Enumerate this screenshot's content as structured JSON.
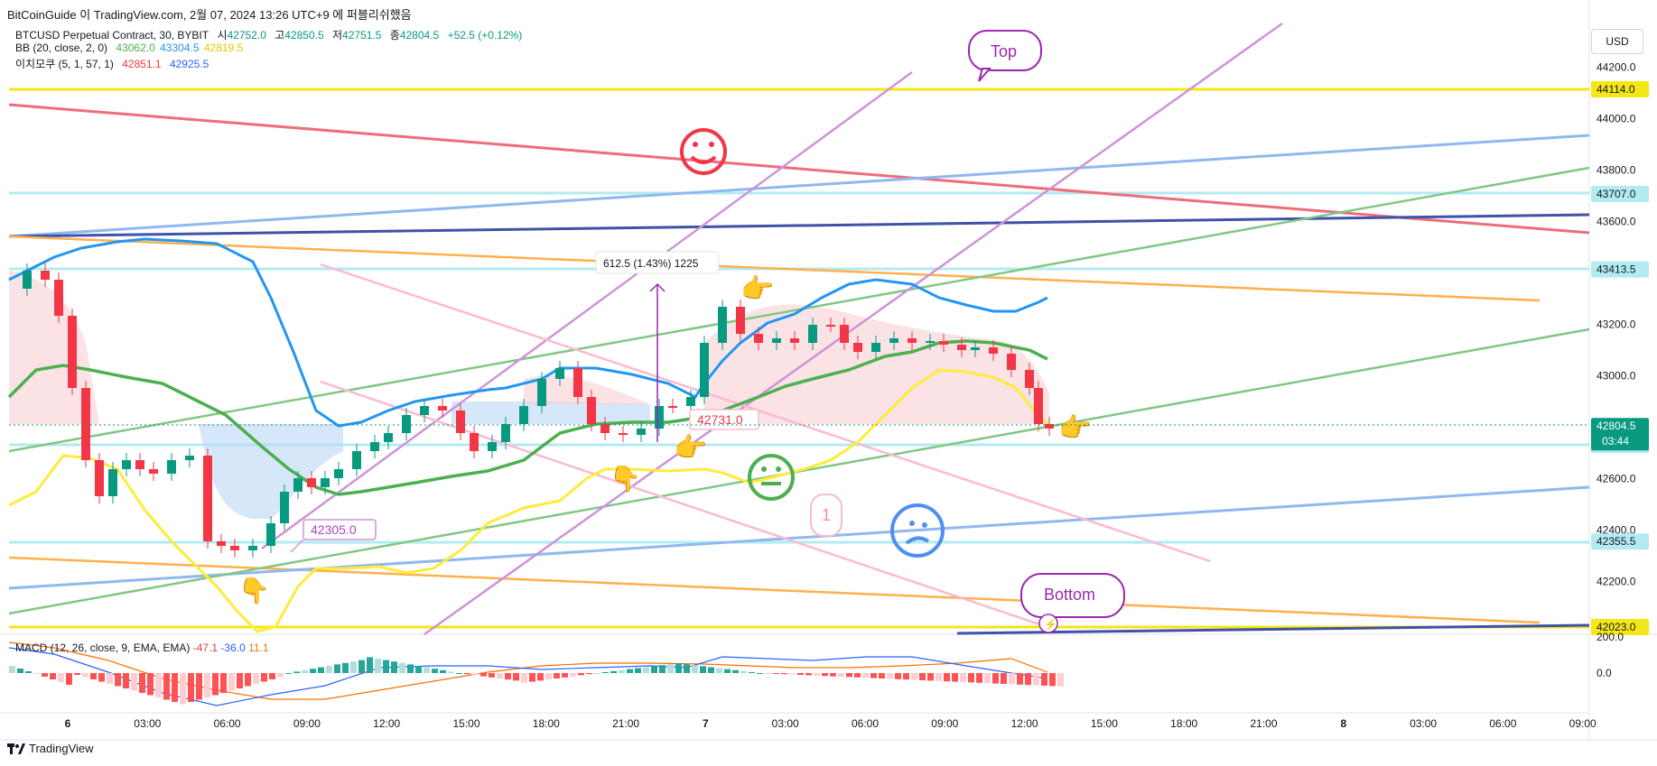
{
  "header": {
    "publish_line": "BitCoinGuide 이 TradingView.com, 2월 07, 2024 13:26 UTC+9 에 퍼블리쉬했음"
  },
  "legend": {
    "symbol": "BTCUSD Perpetual Contract, 30, BYBIT",
    "o_label": "시",
    "o": "42752.0",
    "h_label": "고",
    "h": "42850.5",
    "l_label": "저",
    "l": "42751.5",
    "c_label": "종",
    "c": "42804.5",
    "change": "+52.5 (+0.12%)",
    "bb_label": "BB (20, close, 2, 0)",
    "bb_values": [
      "43062.0",
      "43304.5",
      "42819.5"
    ],
    "ichimoku_label": "이치모쿠 (5, 1, 57, 1)",
    "ichimoku_values": [
      "42851.1",
      "42925.5"
    ],
    "macd_label": "MACD (12, 26, close, 9, EMA, EMA)",
    "macd_values": [
      "-47.1",
      "-36.0",
      "11.1"
    ]
  },
  "currency_button": "USD",
  "price_scale": {
    "ticks": [
      {
        "value": 44200,
        "label": "44200.0"
      },
      {
        "value": 44000,
        "label": "44000.0"
      },
      {
        "value": 43800,
        "label": "43800.0"
      },
      {
        "value": 43600,
        "label": "43600.0"
      },
      {
        "value": 43200,
        "label": "43200.0"
      },
      {
        "value": 43000,
        "label": "43000.0"
      },
      {
        "value": 42600,
        "label": "42600.0"
      },
      {
        "value": 42400,
        "label": "42400.0"
      },
      {
        "value": 42200,
        "label": "42200.0"
      }
    ],
    "badges": [
      {
        "value": 44114,
        "label": "44114.0",
        "bg": "#f5e616",
        "fg": "#131722"
      },
      {
        "value": 43707,
        "label": "43707.0",
        "bg": "#b2ebf2",
        "fg": "#131722"
      },
      {
        "value": 43413.5,
        "label": "43413.5",
        "bg": "#b2ebf2",
        "fg": "#131722"
      },
      {
        "value": 42731,
        "label": "42731.0",
        "bg": "#b2ebf2",
        "fg": "#131722"
      },
      {
        "value": 42355.5,
        "label": "42355.5",
        "bg": "#b2ebf2",
        "fg": "#131722"
      },
      {
        "value": 42023,
        "label": "42023.0",
        "bg": "#f5e616",
        "fg": "#131722"
      }
    ],
    "last_price": {
      "value": 42804.5,
      "label": "42804.5",
      "countdown": "03:44",
      "bg": "#089981"
    }
  },
  "macd_scale": {
    "ticks": [
      {
        "value": 200,
        "label": "200.0"
      },
      {
        "value": 0,
        "label": "0.0"
      }
    ]
  },
  "time_axis": {
    "labels": [
      "6",
      "03:00",
      "06:00",
      "09:00",
      "12:00",
      "15:00",
      "18:00",
      "21:00",
      "7",
      "03:00",
      "06:00",
      "09:00",
      "12:00",
      "15:00",
      "18:00",
      "21:00",
      "8",
      "03:00",
      "06:00",
      "09:00"
    ]
  },
  "annotations": {
    "measure": "612.5 (1.43%) 1225",
    "label_42305": "42305.0",
    "label_42731": "42731.0",
    "top_bubble": "Top",
    "bottom_bubble": "Bottom",
    "count_label": "1"
  },
  "colors": {
    "up": "#089981",
    "down": "#f23645",
    "bb_basis": "#4caf50",
    "bb_upper": "#2196f3",
    "bb_lower": "#ffeb3b",
    "macd": "#2962ff",
    "signal": "#ff6d00"
  },
  "footer": {
    "brand": "TradingView"
  }
}
